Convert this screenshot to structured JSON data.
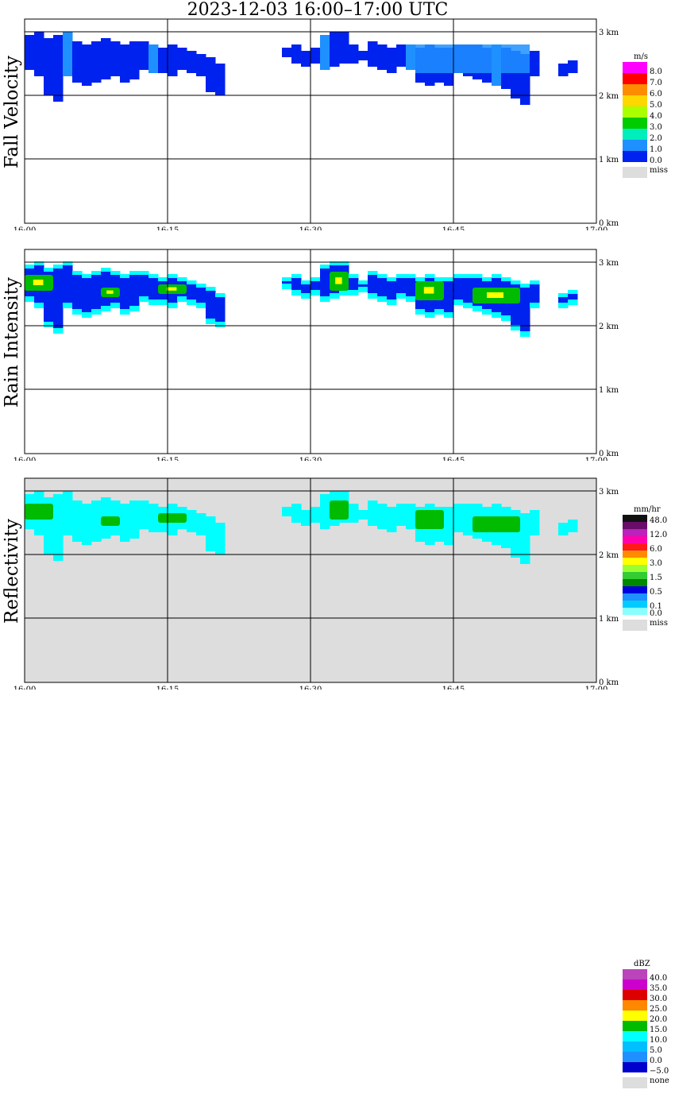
{
  "title": "2023-12-03   16:00–17:00 UTC",
  "time_labels": [
    "16:00",
    "16:15",
    "16:30",
    "16:45",
    "17:00"
  ],
  "height_labels": [
    "3 km",
    "2 km",
    "1 km",
    "0 km"
  ],
  "colors": {
    "axis": "#000000",
    "missing": "#dddddd",
    "blue": "#0022ee",
    "light_blue": "#1e90ff",
    "cyan": "#00ffff",
    "green": "#00bb00",
    "yellow": "#ffff00"
  },
  "panels": [
    {
      "id": "fall-velocity",
      "title": "Fall Velocity",
      "unit": "m/s",
      "legend": [
        {
          "label": "8.0",
          "color": "#ff00ff"
        },
        {
          "label": "7.0",
          "color": "#ff0000"
        },
        {
          "label": "6.0",
          "color": "#ff8c00"
        },
        {
          "label": "5.0",
          "color": "#ffd700"
        },
        {
          "label": "4.0",
          "color": "#aaff00"
        },
        {
          "label": "3.0",
          "color": "#00cc00"
        },
        {
          "label": "2.0",
          "color": "#00eebb"
        },
        {
          "label": "1.0",
          "color": "#1e90ff"
        },
        {
          "label": "0.0",
          "color": "#0022ee"
        }
      ],
      "missing_label": "miss",
      "background": "#ffffff"
    },
    {
      "id": "rain-intensity",
      "title": "Rain Intensity",
      "unit": "mm/hr",
      "legend": [
        {
          "label": "48.0",
          "color": "#111111"
        },
        {
          "label": "",
          "color": "#6a0d6a"
        },
        {
          "label": "12.0",
          "color": "#bb22bb"
        },
        {
          "label": "",
          "color": "#ff00aa"
        },
        {
          "label": "6.0",
          "color": "#ff1a1a"
        },
        {
          "label": "",
          "color": "#ff8c00"
        },
        {
          "label": "3.0",
          "color": "#ffff00"
        },
        {
          "label": "",
          "color": "#99ff33"
        },
        {
          "label": "1.5",
          "color": "#33cc33"
        },
        {
          "label": "",
          "color": "#008800"
        },
        {
          "label": "0.5",
          "color": "#0000dd"
        },
        {
          "label": "",
          "color": "#1e90ff"
        },
        {
          "label": "0.1",
          "color": "#00ccff"
        },
        {
          "label": "0.0",
          "color": "#88ffff"
        }
      ],
      "missing_label": "miss",
      "background": "#ffffff"
    },
    {
      "id": "reflectivity",
      "title": "Reflectivity",
      "unit": "dBZ",
      "legend": [
        {
          "label": "40.0",
          "color": "#bb44bb"
        },
        {
          "label": "35.0",
          "color": "#cc00cc"
        },
        {
          "label": "30.0",
          "color": "#dd0000"
        },
        {
          "label": "25.0",
          "color": "#ff8800"
        },
        {
          "label": "20.0",
          "color": "#ffff00"
        },
        {
          "label": "15.0",
          "color": "#00bb00"
        },
        {
          "label": "10.0",
          "color": "#00ffff"
        },
        {
          "label": "5.0",
          "color": "#00bfff"
        },
        {
          "label": "0.0",
          "color": "#1e90ff"
        },
        {
          "label": "−5.0",
          "color": "#0000cc"
        }
      ],
      "missing_label": "none",
      "background": "#dddddd"
    }
  ],
  "chart_data": {
    "type": "heatmap",
    "title": "2023-12-03   16:00–17:00 UTC",
    "x_axis": {
      "ticks": [
        "16:00",
        "16:15",
        "16:30",
        "16:45",
        "17:00"
      ],
      "range_minutes": [
        0,
        60
      ]
    },
    "y_axis": {
      "ticks": [
        "0 km",
        "1 km",
        "2 km",
        "3 km"
      ],
      "range_km": [
        0,
        3.2
      ]
    },
    "grid": true,
    "rain_band": {
      "top_km": [
        2.95,
        3.0,
        2.9,
        2.95,
        3.0,
        2.85,
        2.8,
        2.85,
        2.9,
        2.85,
        2.8,
        2.85,
        2.85,
        2.8,
        2.75,
        2.8,
        2.75,
        2.7,
        2.65,
        2.6,
        2.5,
        null,
        null,
        null,
        null,
        null,
        null,
        2.75,
        2.8,
        2.7,
        2.75,
        2.95,
        3.0,
        3.0,
        2.8,
        2.7,
        2.85,
        2.8,
        2.75,
        2.8,
        2.8,
        2.75,
        2.8,
        2.75,
        2.75,
        2.8,
        2.8,
        2.8,
        2.75,
        2.8,
        2.75,
        2.7,
        2.65,
        2.7,
        null,
        null,
        2.5,
        2.55,
        null,
        null
      ],
      "bottom_km": [
        2.4,
        2.3,
        2.0,
        1.9,
        2.3,
        2.2,
        2.15,
        2.2,
        2.25,
        2.3,
        2.2,
        2.25,
        2.4,
        2.35,
        2.35,
        2.3,
        2.4,
        2.35,
        2.3,
        2.05,
        2.0,
        null,
        null,
        null,
        null,
        null,
        null,
        2.6,
        2.5,
        2.45,
        2.5,
        2.4,
        2.45,
        2.5,
        2.5,
        2.55,
        2.45,
        2.4,
        2.35,
        2.45,
        2.4,
        2.2,
        2.15,
        2.2,
        2.15,
        2.35,
        2.3,
        2.25,
        2.2,
        2.15,
        2.1,
        1.95,
        1.85,
        2.3,
        null,
        null,
        2.3,
        2.35,
        null,
        null
      ]
    },
    "intense_cores": [
      {
        "start_min": 0,
        "end_min": 3,
        "bottom_km": 2.55,
        "top_km": 2.8
      },
      {
        "start_min": 8,
        "end_min": 10,
        "bottom_km": 2.45,
        "top_km": 2.6
      },
      {
        "start_min": 14,
        "end_min": 17,
        "bottom_km": 2.5,
        "top_km": 2.65
      },
      {
        "start_min": 32,
        "end_min": 34,
        "bottom_km": 2.55,
        "top_km": 2.85
      },
      {
        "start_min": 41,
        "end_min": 44,
        "bottom_km": 2.4,
        "top_km": 2.7
      },
      {
        "start_min": 47,
        "end_min": 52,
        "bottom_km": 2.35,
        "top_km": 2.6
      }
    ]
  }
}
